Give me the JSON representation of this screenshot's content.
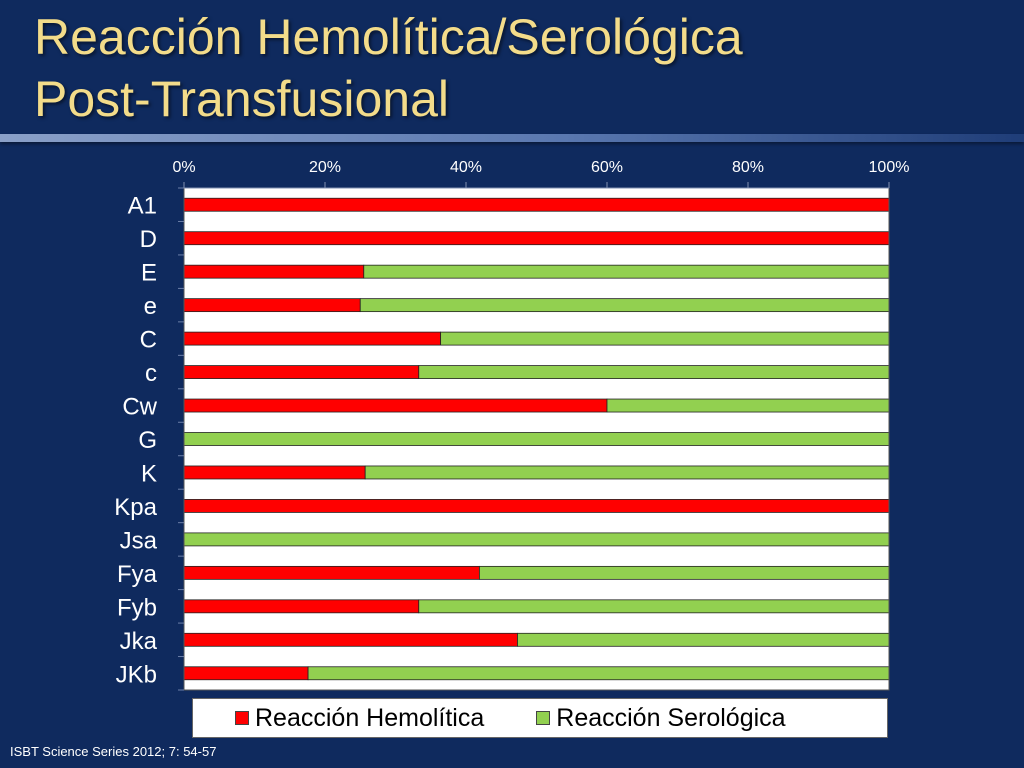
{
  "title_line1": "Reacción Hemolítica/Serológica",
  "title_line2": "Post-Transfusional",
  "source": "ISBT Science Series 2012; 7: 54-57",
  "colors": {
    "background": "#0f2a5e",
    "title": "#f3dc8a",
    "hemolitica": "#ff0000",
    "serologica": "#92d050"
  },
  "chart_data": {
    "type": "bar",
    "orientation": "horizontal",
    "stacked": true,
    "percent": true,
    "categories": [
      "A1",
      "D",
      "E",
      "e",
      "C",
      "c",
      "Cw",
      "G",
      "K",
      "Kpa",
      "Jsa",
      "Fya",
      "Fyb",
      "Jka",
      "JKb"
    ],
    "series": [
      {
        "name": "Reacción Hemolítica",
        "color": "#ff0000",
        "values": [
          100,
          100,
          25.5,
          25,
          36.4,
          33.3,
          60,
          0,
          25.7,
          100,
          0,
          41.9,
          33.3,
          47.3,
          17.6
        ]
      },
      {
        "name": "Reacción Serológica",
        "color": "#92d050",
        "values": [
          0,
          0,
          74.5,
          75,
          63.6,
          66.7,
          40,
          100,
          74.3,
          0,
          100,
          58.1,
          66.7,
          52.7,
          82.4
        ]
      }
    ],
    "xticks": [
      "0%",
      "20%",
      "40%",
      "60%",
      "80%",
      "100%"
    ],
    "xlim": [
      0,
      100
    ],
    "x_axis_position": "top",
    "legend_position": "bottom",
    "grid": false
  }
}
